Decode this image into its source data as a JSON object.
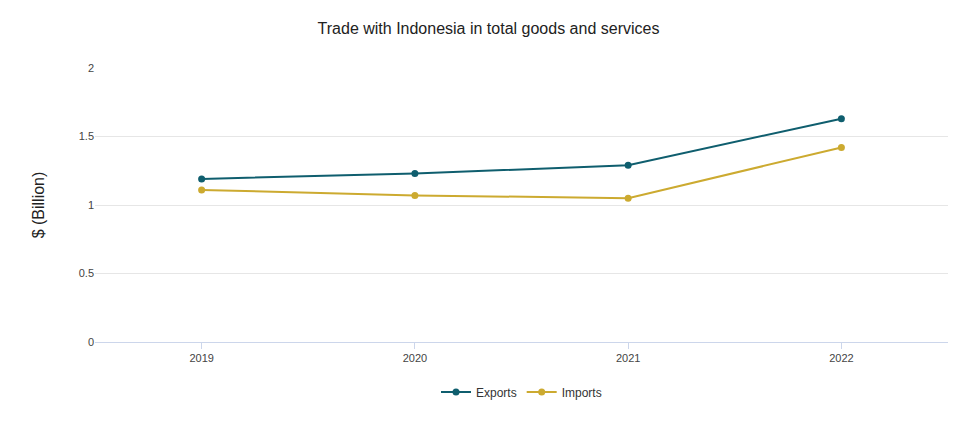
{
  "chart_data": {
    "type": "line",
    "title": "Trade with Indonesia in total goods and services",
    "y_label": "$ (Billion)",
    "categories": [
      "2019",
      "2020",
      "2021",
      "2022"
    ],
    "series": [
      {
        "name": "Exports",
        "color": "#0f5e6e",
        "values": [
          1.19,
          1.23,
          1.29,
          1.63
        ]
      },
      {
        "name": "Imports",
        "color": "#ccaa30",
        "values": [
          1.11,
          1.07,
          1.05,
          1.42
        ]
      }
    ],
    "ylim": [
      0,
      2
    ],
    "yticks": [
      0,
      0.5,
      1,
      1.5,
      2
    ],
    "grid": true,
    "legend": "bottom",
    "marker": "circle"
  }
}
